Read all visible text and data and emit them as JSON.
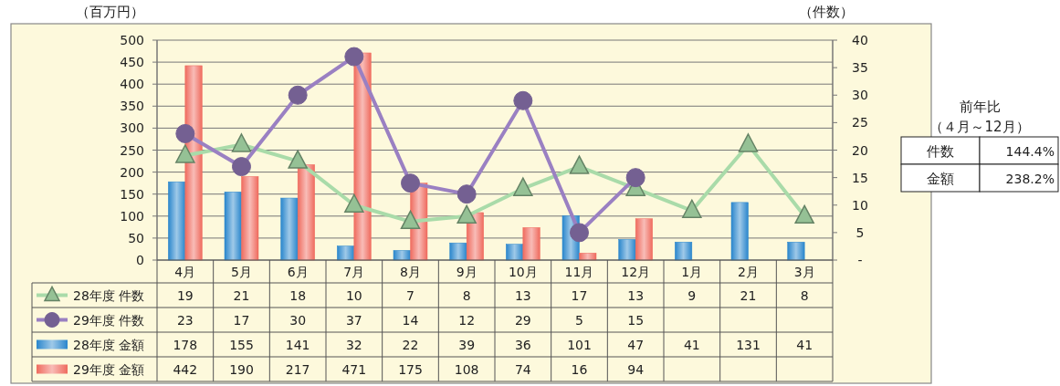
{
  "chart_data": [
    {
      "type": "bar",
      "ylabel": "（百万円）",
      "y2label": "（件数）",
      "categories": [
        "4月",
        "5月",
        "6月",
        "7月",
        "8月",
        "9月",
        "10月",
        "11月",
        "12月",
        "1月",
        "2月",
        "3月"
      ],
      "series": [
        {
          "name": "28年度 件数",
          "type": "line",
          "axis": "y2",
          "marker": "triangle",
          "color": "#a9dba9",
          "values": [
            19,
            21,
            18,
            10,
            7,
            8,
            13,
            17,
            13,
            9,
            21,
            8
          ]
        },
        {
          "name": "29年度 件数",
          "type": "line",
          "axis": "y2",
          "marker": "circle",
          "color": "#9a80c2",
          "values": [
            23,
            17,
            30,
            37,
            14,
            12,
            29,
            5,
            15,
            null,
            null,
            null
          ]
        },
        {
          "name": "28年度 金額",
          "color": "#2a86cc",
          "values": [
            178,
            155,
            141,
            32,
            22,
            39,
            36,
            101,
            47,
            41,
            131,
            41
          ]
        },
        {
          "name": "29年度 金額",
          "color": "#ef6b5e",
          "values": [
            442,
            190,
            217,
            471,
            175,
            108,
            74,
            16,
            94,
            null,
            null,
            null
          ]
        }
      ],
      "ylim": [
        0,
        500
      ],
      "yticks": [
        0,
        50,
        100,
        150,
        200,
        250,
        300,
        350,
        400,
        450,
        500
      ],
      "y2lim": [
        0,
        40
      ],
      "y2ticks": [
        {
          "value": 0,
          "label": "-"
        },
        5,
        10,
        15,
        20,
        25,
        30,
        35,
        40
      ],
      "grid": "y",
      "legend": "bottom left",
      "data_labels": true
    },
    {
      "type": "other",
      "title": "前年比",
      "subtitle": "（４月～12月）",
      "categories": [
        "件数",
        "金額"
      ],
      "value_labels": [
        "144.4%",
        "238.2%"
      ]
    }
  ]
}
